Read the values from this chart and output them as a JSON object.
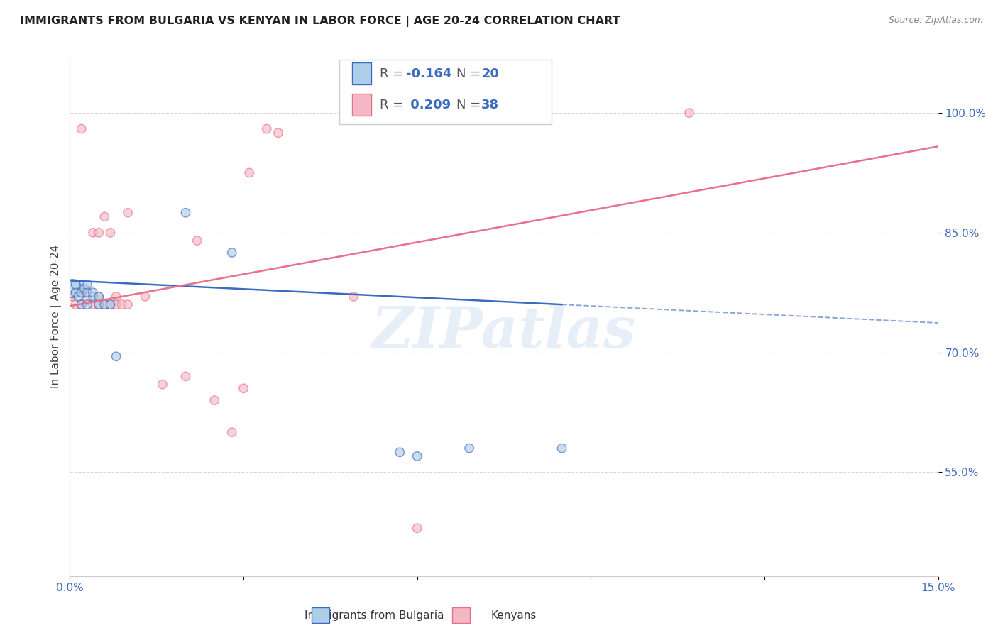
{
  "title": "IMMIGRANTS FROM BULGARIA VS KENYAN IN LABOR FORCE | AGE 20-24 CORRELATION CHART",
  "source": "Source: ZipAtlas.com",
  "ylabel_label": "In Labor Force | Age 20-24",
  "xlim": [
    0.0,
    0.15
  ],
  "ylim": [
    0.42,
    1.07
  ],
  "ytick_positions": [
    0.55,
    0.7,
    0.85,
    1.0
  ],
  "ytick_labels": [
    "55.0%",
    "70.0%",
    "85.0%",
    "100.0%"
  ],
  "legend_R_blue": "-0.164",
  "legend_N_blue": "20",
  "legend_R_pink": "0.209",
  "legend_N_pink": "38",
  "blue_color": "#aecde8",
  "pink_color": "#f4b8c4",
  "blue_line_color": "#3a6bbf",
  "pink_line_color": "#e8708a",
  "watermark": "ZIPatlas",
  "blue_line_x0": 0.0,
  "blue_line_y0": 0.79,
  "blue_line_x1": 0.085,
  "blue_line_y1": 0.76,
  "blue_line_dash_x0": 0.085,
  "blue_line_dash_y0": 0.76,
  "blue_line_dash_x1": 0.15,
  "blue_line_dash_y1": 0.737,
  "pink_line_x0": 0.0,
  "pink_line_y0": 0.758,
  "pink_line_x1": 0.15,
  "pink_line_y1": 0.958,
  "blue_points_x": [
    0.0005,
    0.001,
    0.001,
    0.0015,
    0.002,
    0.002,
    0.0025,
    0.003,
    0.003,
    0.003,
    0.004,
    0.004,
    0.005,
    0.005,
    0.006,
    0.007,
    0.008,
    0.02,
    0.028,
    0.057,
    0.06,
    0.069,
    0.085
  ],
  "blue_points_y": [
    0.78,
    0.775,
    0.785,
    0.77,
    0.76,
    0.775,
    0.78,
    0.76,
    0.775,
    0.785,
    0.77,
    0.775,
    0.76,
    0.77,
    0.76,
    0.76,
    0.695,
    0.875,
    0.825,
    0.575,
    0.57,
    0.58,
    0.58
  ],
  "blue_sizes": [
    350,
    80,
    80,
    80,
    80,
    80,
    80,
    80,
    80,
    80,
    80,
    80,
    80,
    80,
    80,
    80,
    80,
    80,
    80,
    80,
    80,
    80,
    80
  ],
  "pink_points_x": [
    0.0003,
    0.001,
    0.001,
    0.002,
    0.002,
    0.002,
    0.003,
    0.003,
    0.004,
    0.004,
    0.005,
    0.005,
    0.005,
    0.006,
    0.006,
    0.007,
    0.007,
    0.008,
    0.008,
    0.009,
    0.01,
    0.01,
    0.013,
    0.016,
    0.02,
    0.022,
    0.025,
    0.028,
    0.03,
    0.031,
    0.034,
    0.036,
    0.049,
    0.06,
    0.107
  ],
  "pink_points_y": [
    0.77,
    0.76,
    0.775,
    0.76,
    0.775,
    0.98,
    0.765,
    0.775,
    0.76,
    0.85,
    0.76,
    0.77,
    0.85,
    0.76,
    0.87,
    0.76,
    0.85,
    0.77,
    0.76,
    0.76,
    0.76,
    0.875,
    0.77,
    0.66,
    0.67,
    0.84,
    0.64,
    0.6,
    0.655,
    0.925,
    0.98,
    0.975,
    0.77,
    0.48,
    1.0
  ],
  "pink_sizes": [
    80,
    80,
    80,
    80,
    80,
    80,
    80,
    80,
    80,
    80,
    80,
    80,
    80,
    80,
    80,
    80,
    80,
    80,
    80,
    80,
    80,
    80,
    80,
    80,
    80,
    80,
    80,
    80,
    80,
    80,
    80,
    80,
    80,
    80,
    80
  ],
  "background_color": "#ffffff",
  "grid_color": "#d8d8d8"
}
